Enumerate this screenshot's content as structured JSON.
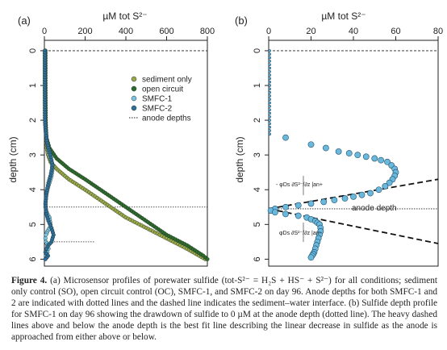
{
  "figure": {
    "panel_a_label": "(a)",
    "panel_b_label": "(b)",
    "top_axis_label_a": "µM tot S²⁻",
    "top_axis_label_b": "µM tot S²⁻",
    "left_axis_label_a": "depth (cm)",
    "left_axis_label_b": "depth (cm)",
    "anode_depth_annotation": "anode depth",
    "flux_label_above": "- φDs ∂S²⁻/∂z |an+",
    "flux_label_below": "φDs ∂S²⁻/∂z |an-"
  },
  "chart_data": [
    {
      "panel": "(a)",
      "type": "line",
      "title": "",
      "xlabel": "µM tot S²⁻",
      "ylabel": "depth (cm)",
      "xlim": [
        0,
        800
      ],
      "ylim": [
        6.2,
        -0.3
      ],
      "xticks": [
        0,
        200,
        400,
        600,
        800
      ],
      "yticks": [
        0,
        1,
        2,
        3,
        4,
        5,
        6
      ],
      "grid": false,
      "legend_position": "right",
      "legend": [
        "sediment only",
        "open circuit",
        "SMFC-1",
        "SMFC-2",
        "anode depths"
      ],
      "sediment_water_interface_depth": 0,
      "anode_depths": [
        4.5,
        5.5
      ],
      "series": [
        {
          "name": "sediment only",
          "color": "#9aa84a",
          "x": [
            5,
            5,
            6,
            8,
            12,
            18,
            30,
            60,
            120,
            200,
            300,
            400,
            500,
            600,
            700,
            760,
            790
          ],
          "y": [
            0,
            1,
            2,
            2.5,
            2.8,
            3.0,
            3.2,
            3.4,
            3.7,
            4.0,
            4.4,
            4.8,
            5.1,
            5.4,
            5.7,
            5.9,
            6.0
          ]
        },
        {
          "name": "open circuit",
          "color": "#2e6b2e",
          "x": [
            5,
            5,
            6,
            10,
            25,
            60,
            120,
            200,
            300,
            400,
            500,
            600,
            700,
            780,
            800
          ],
          "y": [
            0,
            1,
            2,
            2.5,
            2.8,
            3.1,
            3.4,
            3.7,
            4.1,
            4.5,
            4.9,
            5.3,
            5.6,
            5.9,
            6.0
          ]
        },
        {
          "name": "SMFC-1",
          "color": "#7cc4e6",
          "x": [
            2,
            2,
            3,
            5,
            8,
            12,
            18,
            25,
            35,
            40,
            35,
            25,
            15,
            8,
            5,
            8,
            15,
            25,
            30,
            25,
            15,
            8,
            5,
            8,
            15,
            20,
            15,
            8
          ],
          "y": [
            0,
            1,
            2,
            2.2,
            2.4,
            2.6,
            2.8,
            3.0,
            3.2,
            3.4,
            3.6,
            3.8,
            4.0,
            4.2,
            4.5,
            4.6,
            4.7,
            4.8,
            5.0,
            5.1,
            5.2,
            5.3,
            5.4,
            5.5,
            5.6,
            5.7,
            5.8,
            5.9
          ]
        },
        {
          "name": "SMFC-2",
          "color": "#2f6f9c",
          "x": [
            2,
            2,
            3,
            6,
            12,
            20,
            30,
            40,
            30,
            20,
            10,
            5,
            10,
            20,
            35,
            45,
            35,
            20,
            10,
            5,
            10,
            18,
            12,
            5
          ],
          "y": [
            0,
            1,
            2,
            2.3,
            2.6,
            2.8,
            3.0,
            3.3,
            3.6,
            3.8,
            4.1,
            4.4,
            4.7,
            4.9,
            5.1,
            5.3,
            5.5,
            5.6,
            5.7,
            5.8,
            5.85,
            5.9,
            5.95,
            6.0
          ]
        }
      ]
    },
    {
      "panel": "(b)",
      "type": "scatter",
      "title": "",
      "xlabel": "µM tot S²⁻",
      "ylabel": "depth (cm)",
      "xlim": [
        0,
        80
      ],
      "ylim": [
        6.2,
        -0.3
      ],
      "xticks": [
        0,
        20,
        40,
        60,
        80
      ],
      "yticks": [
        0,
        1,
        2,
        3,
        4,
        5,
        6
      ],
      "grid": false,
      "anode_depth": 4.55,
      "sediment_water_interface_depth": 0,
      "series": [
        {
          "name": "",
          "color": "#6ab8dc",
          "x": [
            0.5,
            0.5,
            0.5,
            0.5,
            0.5,
            0.5,
            0.5,
            0.5,
            0.5,
            0.5,
            0.5,
            0.5,
            0.5,
            0.5,
            0.5,
            0.5,
            0.5,
            0.5,
            0.5,
            0.5,
            0.5,
            0.5,
            0.5,
            0.5,
            0.5,
            8,
            20,
            27,
            33,
            38,
            42,
            46,
            50,
            53,
            56,
            58,
            59.5,
            60,
            59.5,
            58.5,
            57,
            55,
            52,
            48,
            44,
            40,
            36,
            31,
            26,
            20,
            14,
            8,
            3,
            1,
            3,
            8,
            14,
            18,
            20,
            22,
            23,
            24,
            24.5,
            24.5,
            24,
            23.5,
            23,
            22.5,
            22,
            21.5,
            21,
            20.5,
            20
          ],
          "y": [
            0,
            0.1,
            0.2,
            0.3,
            0.4,
            0.5,
            0.6,
            0.7,
            0.8,
            0.9,
            1.0,
            1.1,
            1.2,
            1.3,
            1.4,
            1.5,
            1.6,
            1.7,
            1.8,
            1.9,
            2.0,
            2.1,
            2.2,
            2.3,
            2.4,
            2.5,
            2.7,
            2.8,
            2.9,
            2.95,
            3.0,
            3.05,
            3.1,
            3.15,
            3.2,
            3.3,
            3.4,
            3.5,
            3.6,
            3.7,
            3.8,
            3.9,
            4.0,
            4.1,
            4.15,
            4.2,
            4.25,
            4.3,
            4.35,
            4.4,
            4.45,
            4.5,
            4.55,
            4.6,
            4.65,
            4.7,
            4.75,
            4.8,
            4.85,
            4.9,
            4.95,
            5.0,
            5.1,
            5.2,
            5.3,
            5.4,
            5.5,
            5.6,
            5.7,
            5.8,
            5.85,
            5.9,
            5.95
          ]
        },
        {
          "name": "",
          "type": "fit-line",
          "color": "#111111",
          "x": [
            0,
            80
          ],
          "y": [
            4.55,
            3.7
          ]
        },
        {
          "name": "",
          "type": "fit-line",
          "color": "#111111",
          "x": [
            0,
            80
          ],
          "y": [
            4.55,
            5.55
          ]
        }
      ]
    }
  ],
  "caption": {
    "label": "Figure 4.",
    "text": "(a) Microsensor profiles of porewater sulfide (tot-S²⁻ = H₂S + HS⁻ + S²⁻) for all conditions; sediment only control (SO), open circuit control (OC), SMFC-1, and SMFC-2 on day 96. Anode depths for both SMFC-1 and 2 are indicated with dotted lines and the dashed line indicates the sediment–water interface. (b) Sulfide depth profile for SMFC-1 on day 96 showing the drawdown of sulfide to 0 µM at the anode depth (dotted line). The heavy dashed lines above and below the anode depth is the best fit line describing the linear decrease in sulfide as the anode is approached from either above or below."
  }
}
